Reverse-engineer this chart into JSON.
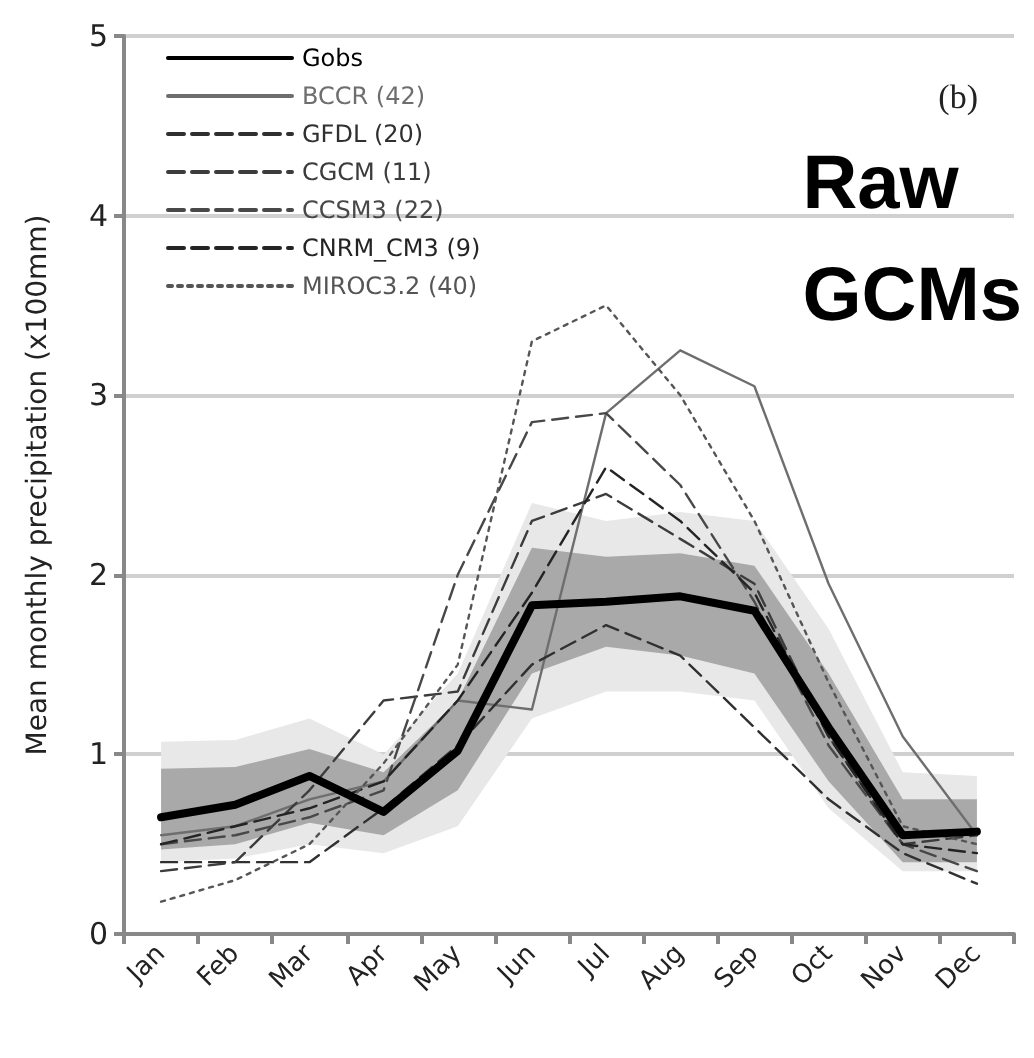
{
  "chart_data": {
    "type": "line",
    "ylabel": "Mean monthly precipitation (x100mm)",
    "categories": [
      "Jan",
      "Feb",
      "Mar",
      "Apr",
      "May",
      "Jun",
      "Jul",
      "Aug",
      "Sep",
      "Oct",
      "Nov",
      "Dec"
    ],
    "series": [
      {
        "name": "Gobs",
        "color": "#000000",
        "line_style": "solid",
        "values": [
          0.65,
          0.72,
          0.88,
          0.68,
          1.02,
          1.83,
          1.85,
          1.88,
          1.8,
          1.15,
          0.55,
          0.57
        ],
        "lower": [
          0.47,
          0.5,
          0.62,
          0.55,
          0.8,
          1.45,
          1.6,
          1.55,
          1.45,
          0.85,
          0.4,
          0.4
        ],
        "upper": [
          0.92,
          0.93,
          1.03,
          0.9,
          1.3,
          2.15,
          2.1,
          2.12,
          2.05,
          1.45,
          0.75,
          0.75
        ]
      },
      {
        "color": "#e8e8e8",
        "values": [
          null,
          null,
          null,
          null,
          null,
          null,
          null,
          null,
          null,
          null,
          null,
          null
        ],
        "lower": [
          0.4,
          0.42,
          0.5,
          0.45,
          0.6,
          1.2,
          1.35,
          1.35,
          1.3,
          0.7,
          0.35,
          0.35
        ],
        "upper": [
          1.07,
          1.08,
          1.2,
          1.0,
          1.45,
          2.4,
          2.3,
          2.35,
          2.3,
          1.7,
          0.9,
          0.88
        ]
      },
      {
        "name": "BCCR (42)",
        "color": "#6e6e6e",
        "line_style": "solid",
        "values": [
          0.55,
          0.6,
          0.75,
          0.85,
          1.3,
          1.25,
          2.9,
          3.25,
          3.05,
          1.95,
          1.1,
          0.55
        ]
      },
      {
        "name": "GFDL (20)",
        "color": "#303030",
        "line_style": "dashed",
        "values": [
          0.4,
          0.4,
          0.4,
          0.7,
          1.05,
          1.5,
          1.72,
          1.55,
          1.15,
          0.75,
          0.45,
          0.28
        ]
      },
      {
        "name": "CGCM (11)",
        "color": "#3c3c3c",
        "line_style": "dashed",
        "values": [
          0.35,
          0.4,
          0.8,
          1.3,
          1.35,
          2.3,
          2.45,
          2.2,
          1.95,
          1.1,
          0.5,
          0.55
        ]
      },
      {
        "name": "CCSM3 (22)",
        "color": "#484848",
        "line_style": "dashed",
        "values": [
          0.5,
          0.55,
          0.65,
          0.8,
          2.0,
          2.85,
          2.9,
          2.5,
          1.85,
          1.05,
          0.5,
          0.35
        ]
      },
      {
        "name": "CNRM_CM3 (9)",
        "color": "#242424",
        "line_style": "dashed",
        "values": [
          0.5,
          0.6,
          0.7,
          0.85,
          1.3,
          1.9,
          2.6,
          2.3,
          1.9,
          1.1,
          0.5,
          0.45
        ]
      },
      {
        "name": "MIROC3.2 (40)",
        "color": "#555555",
        "line_style": "dotted",
        "values": [
          0.18,
          0.3,
          0.5,
          0.95,
          1.5,
          3.3,
          3.5,
          3.0,
          2.3,
          1.4,
          0.6,
          0.5
        ]
      }
    ],
    "ylim": [
      0,
      5
    ],
    "yticks": [
      0,
      1,
      2,
      3,
      4,
      5
    ],
    "grid": "y",
    "legend": "top left",
    "marker": "none",
    "annotations": [
      "(b)",
      "Raw GCMs"
    ]
  }
}
